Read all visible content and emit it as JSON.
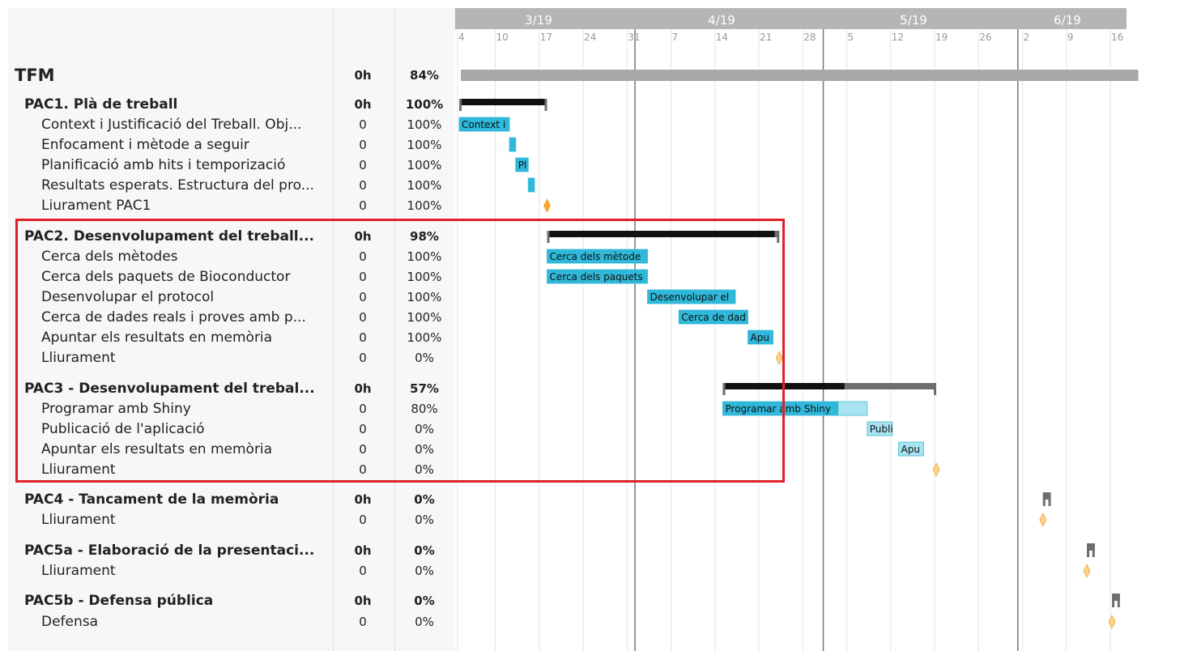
{
  "chart_data": {
    "type": "gantt",
    "months": [
      "3/19",
      "4/19",
      "5/19",
      "6/19"
    ],
    "week_ticks": [
      "4",
      "10",
      "17",
      "24",
      "31",
      "7",
      "14",
      "21",
      "28",
      "5",
      "12",
      "19",
      "26",
      "2",
      "9",
      "16"
    ],
    "colors": {
      "task_done": "#2fb8d9",
      "task_todo": "#a8e3f1",
      "summary_done": "#111111",
      "summary_todo": "#6e6e6e",
      "project_bar": "#a8a8a8",
      "milestone_done": "#f5a623",
      "milestone_todo": "#ffd28a",
      "header_bg": "#b5b5b5",
      "highlight": "#e0202a"
    },
    "rows": [
      {
        "type": "project",
        "name": "TFM",
        "hours": "0h",
        "progress": "84%",
        "start": "2019-03-04",
        "end": "2019-06-18"
      },
      {
        "type": "group",
        "name": "PAC1. Plà de treball",
        "hours": "0h",
        "progress": "100%",
        "start": "2019-03-04",
        "end": "2019-03-18",
        "pct": 1.0
      },
      {
        "type": "task",
        "name": "Context i Justificació del Treball. Obj...",
        "hours": "0",
        "progress": "100%",
        "start": "2019-03-04",
        "end": "2019-03-12",
        "pct": 1.0,
        "label": "Context i"
      },
      {
        "type": "task",
        "name": "Enfocament i mètode a seguir",
        "hours": "0",
        "progress": "100%",
        "start": "2019-03-12",
        "end": "2019-03-13",
        "pct": 1.0,
        "label": ""
      },
      {
        "type": "task",
        "name": "Planificació amb hits i temporizació",
        "hours": "0",
        "progress": "100%",
        "start": "2019-03-13",
        "end": "2019-03-15",
        "pct": 1.0,
        "label": "Pl"
      },
      {
        "type": "task",
        "name": "Resultats esperats. Estructura del pro...",
        "hours": "0",
        "progress": "100%",
        "start": "2019-03-15",
        "end": "2019-03-16",
        "pct": 1.0,
        "label": ""
      },
      {
        "type": "milestone",
        "name": "Liurament PAC1",
        "hours": "0",
        "progress": "100%",
        "date": "2019-03-18",
        "done": true
      },
      {
        "type": "group",
        "name": "PAC2. Desenvolupament del treball...",
        "hours": "0h",
        "progress": "98%",
        "start": "2019-03-18",
        "end": "2019-04-24",
        "pct": 0.98
      },
      {
        "type": "task",
        "name": "Cerca dels mètodes",
        "hours": "0",
        "progress": "100%",
        "start": "2019-03-18",
        "end": "2019-04-03",
        "pct": 1.0,
        "label": "Cerca dels mètode"
      },
      {
        "type": "task",
        "name": "Cerca dels paquets de Bioconductor",
        "hours": "0",
        "progress": "100%",
        "start": "2019-03-18",
        "end": "2019-04-03",
        "pct": 1.0,
        "label": "Cerca dels paquets"
      },
      {
        "type": "task",
        "name": "Desenvolupar el protocol",
        "hours": "0",
        "progress": "100%",
        "start": "2019-04-03",
        "end": "2019-04-17",
        "pct": 1.0,
        "label": "Desenvolupar el"
      },
      {
        "type": "task",
        "name": "Cerca de dades reals i proves amb p...",
        "hours": "0",
        "progress": "100%",
        "start": "2019-04-08",
        "end": "2019-04-19",
        "pct": 1.0,
        "label": "Cerca de dad"
      },
      {
        "type": "task",
        "name": "Apuntar els resultats en memòria",
        "hours": "0",
        "progress": "100%",
        "start": "2019-04-19",
        "end": "2019-04-23",
        "pct": 1.0,
        "label": "Apu"
      },
      {
        "type": "milestone",
        "name": "Lliurament",
        "hours": "0",
        "progress": "0%",
        "date": "2019-04-24",
        "done": false
      },
      {
        "type": "group",
        "name": "PAC3 - Desenvolupament del trebal...",
        "hours": "0h",
        "progress": "57%",
        "start": "2019-04-15",
        "end": "2019-05-19",
        "pct": 0.57
      },
      {
        "type": "task",
        "name": "Programar amb Shiny",
        "hours": "0",
        "progress": "80%",
        "start": "2019-04-15",
        "end": "2019-05-08",
        "pct": 0.8,
        "label": "Programar amb Shiny"
      },
      {
        "type": "task",
        "name": "Publicació de l'aplicació",
        "hours": "0",
        "progress": "0%",
        "start": "2019-05-08",
        "end": "2019-05-12",
        "pct": 0.0,
        "label": "Publi"
      },
      {
        "type": "task",
        "name": "Apuntar els resultats en memòria",
        "hours": "0",
        "progress": "0%",
        "start": "2019-05-13",
        "end": "2019-05-17",
        "pct": 0.0,
        "label": "Apu"
      },
      {
        "type": "milestone",
        "name": "Lliurament",
        "hours": "0",
        "progress": "0%",
        "date": "2019-05-19",
        "done": false
      },
      {
        "type": "group",
        "name": "PAC4 - Tancament de la memòria",
        "hours": "0h",
        "progress": "0%",
        "start": "2019-06-05",
        "end": "2019-06-06",
        "pct": 0.0
      },
      {
        "type": "milestone",
        "name": "Lliurament",
        "hours": "0",
        "progress": "0%",
        "date": "2019-06-05",
        "done": false
      },
      {
        "type": "group",
        "name": "PAC5a - Elaboració de la presentaci...",
        "hours": "0h",
        "progress": "0%",
        "start": "2019-06-12",
        "end": "2019-06-13",
        "pct": 0.0
      },
      {
        "type": "milestone",
        "name": "Lliurament",
        "hours": "0",
        "progress": "0%",
        "date": "2019-06-12",
        "done": false
      },
      {
        "type": "group",
        "name": "PAC5b - Defensa pública",
        "hours": "0h",
        "progress": "0%",
        "start": "2019-06-16",
        "end": "2019-06-17",
        "pct": 0.0
      },
      {
        "type": "milestone",
        "name": "Defensa",
        "hours": "0",
        "progress": "0%",
        "date": "2019-06-16",
        "done": false
      }
    ]
  }
}
